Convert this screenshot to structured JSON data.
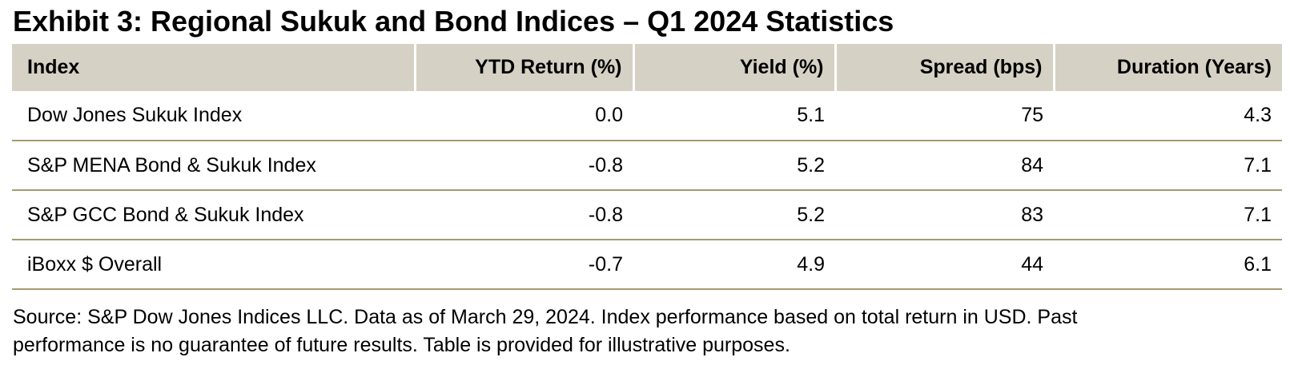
{
  "chart_data": {
    "type": "table",
    "title": "Exhibit 3: Regional Sukuk and Bond Indices – Q1 2024 Statistics",
    "columns": [
      "Index",
      "YTD Return (%)",
      "Yield (%)",
      "Spread (bps)",
      "Duration (Years)"
    ],
    "rows": [
      [
        "Dow Jones Sukuk Index",
        "0.0",
        "5.1",
        "75",
        "4.3"
      ],
      [
        "S&P MENA Bond & Sukuk Index",
        "-0.8",
        "5.2",
        "84",
        "7.1"
      ],
      [
        "S&P GCC Bond & Sukuk Index",
        "-0.8",
        "5.2",
        "83",
        "7.1"
      ],
      [
        "iBoxx $ Overall",
        "-0.7",
        "4.9",
        "44",
        "6.1"
      ]
    ],
    "source_note_lines": [
      "Source: S&P Dow Jones Indices LLC. Data as of March 29, 2024. Index performance based on total return in USD. Past",
      "performance is no guarantee of future results. Table is provided for illustrative purposes."
    ]
  },
  "colors": {
    "header_bg": "#d5d1c5",
    "row_divider": "#a49a72",
    "header_cell_divider": "#ffffff",
    "text": "#000000"
  }
}
